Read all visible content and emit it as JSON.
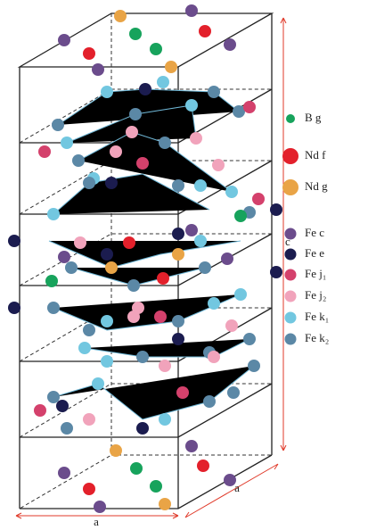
{
  "legend": [
    {
      "label": "B g",
      "color": "#17a35c"
    },
    {
      "label": "Nd f",
      "color": "#e3202b"
    },
    {
      "label": "Nd g",
      "color": "#e9a446"
    },
    {
      "label": "Fe c",
      "color": "#6b4c8c"
    },
    {
      "label": "Fe e",
      "color": "#1b1c4f"
    },
    {
      "label": "Fe j₁",
      "color": "#d4416c"
    },
    {
      "label": "Fe j₂",
      "color": "#f1a3bb"
    },
    {
      "label": "Fe k₁",
      "color": "#72c7e0"
    },
    {
      "label": "Fe k₂",
      "color": "#5b88a6"
    }
  ],
  "axes": {
    "a_front": "a",
    "a_side": "a",
    "c": "c"
  }
}
